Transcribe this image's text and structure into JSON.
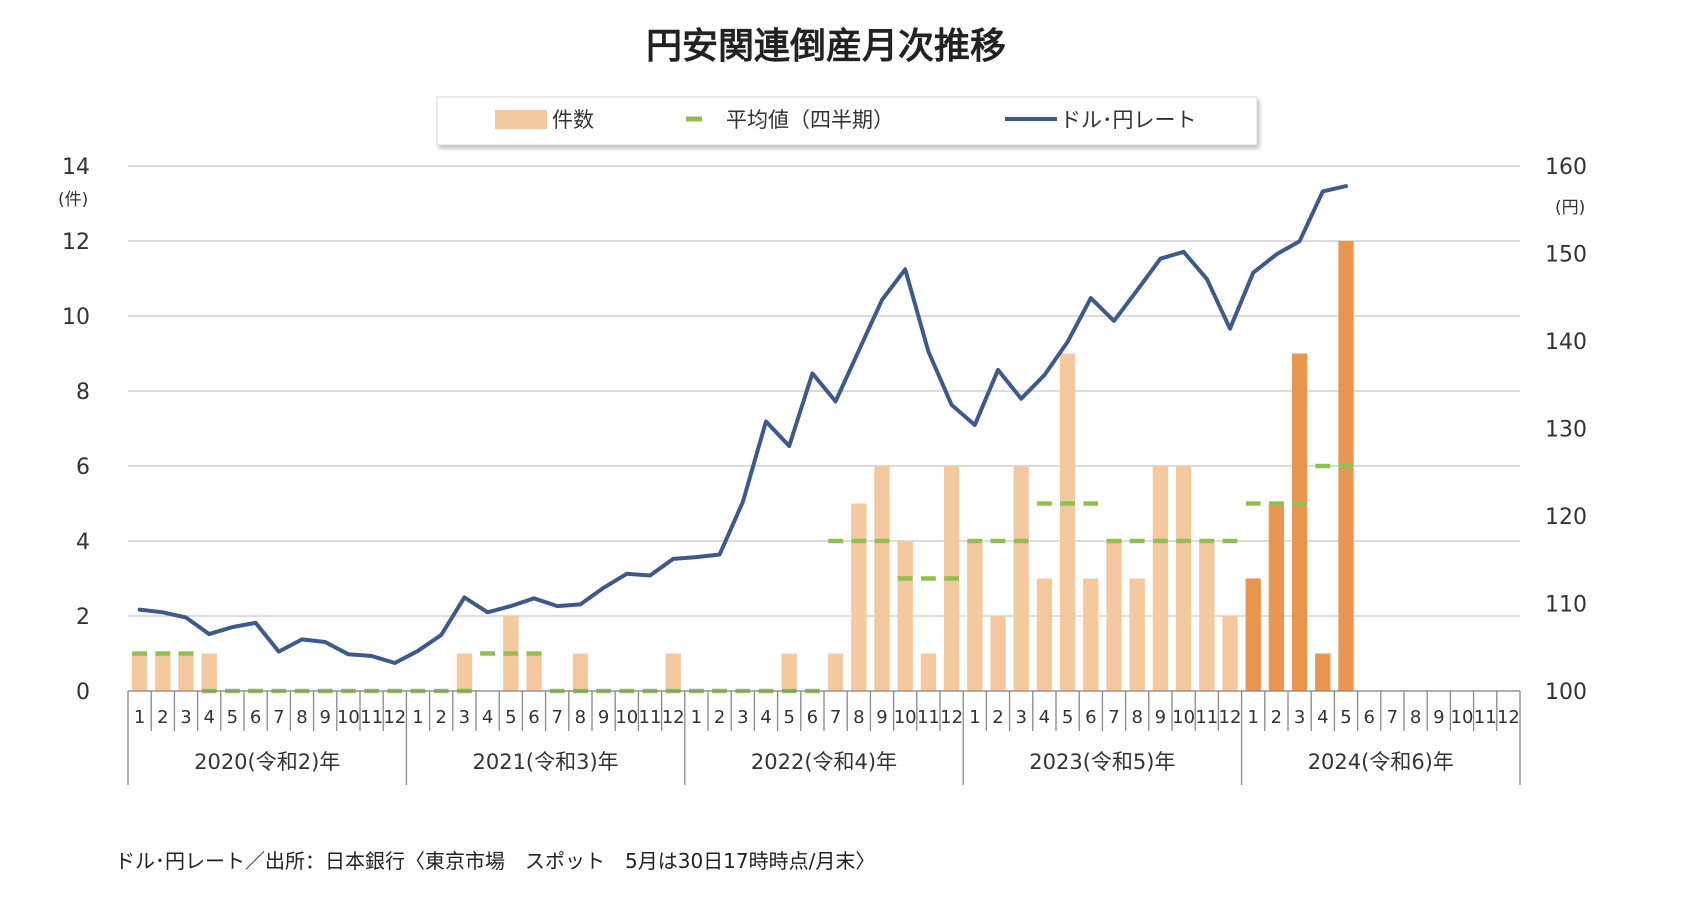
{
  "chart_data": {
    "type": "bar",
    "title": "円安関連倒産月次推移",
    "legend": {
      "placement": "top-center",
      "items": [
        {
          "key": "count",
          "label": "件数",
          "color": "#f5c9a0",
          "marker": "bar"
        },
        {
          "key": "avg",
          "label": "平均値（四半期）",
          "color": "#92c050",
          "marker": "dash"
        },
        {
          "key": "rate",
          "label": "ドル･円レート",
          "color": "#3d5a8a",
          "marker": "line"
        }
      ]
    },
    "left_axis": {
      "unit": "(件)",
      "min": 0,
      "max": 14,
      "ticks": [
        "0",
        "2",
        "4",
        "6",
        "8",
        "10",
        "12",
        "14"
      ]
    },
    "right_axis": {
      "unit": "(円)",
      "min": 100,
      "max": 160,
      "ticks": [
        "100",
        "110",
        "120",
        "130",
        "140",
        "150",
        "160"
      ]
    },
    "grid": true,
    "month_labels": [
      "1",
      "2",
      "3",
      "4",
      "5",
      "6",
      "7",
      "8",
      "9",
      "10",
      "11",
      "12"
    ],
    "years": [
      "2020(令和2)年",
      "2021(令和3)年",
      "2022(令和4)年",
      "2023(令和5)年",
      "2024(令和6)年"
    ],
    "series": [
      {
        "name": "件数",
        "axis": "left",
        "color_light": "#f5c9a0",
        "color_dark": "#e8954f",
        "dark_from_index": 48,
        "values": [
          1,
          1,
          1,
          1,
          0,
          0,
          0,
          0,
          0,
          0,
          0,
          0,
          0,
          0,
          1,
          0,
          2,
          1,
          0,
          1,
          0,
          0,
          0,
          1,
          0,
          0,
          0,
          0,
          1,
          0,
          1,
          5,
          6,
          4,
          1,
          6,
          4,
          2,
          6,
          3,
          9,
          3,
          4,
          3,
          6,
          6,
          4,
          2,
          3,
          5,
          9,
          1,
          12
        ]
      },
      {
        "name": "平均値（四半期）",
        "axis": "left",
        "color": "#92c050",
        "values": [
          1,
          1,
          1,
          0,
          0,
          0,
          0,
          0,
          0,
          0,
          0,
          0,
          0,
          0,
          0,
          1,
          1,
          1,
          0,
          0,
          0,
          0,
          0,
          0,
          0,
          0,
          0,
          0,
          0,
          0,
          4,
          4,
          4,
          3,
          3,
          3,
          4,
          4,
          4,
          5,
          5,
          5,
          4,
          4,
          4,
          4,
          4,
          4,
          5,
          5,
          5,
          6,
          6
        ]
      },
      {
        "name": "ドル･円レート",
        "axis": "right",
        "color": "#3d5a8a",
        "values": [
          109.3,
          109.0,
          108.4,
          106.5,
          107.3,
          107.8,
          104.5,
          105.9,
          105.6,
          104.2,
          104.0,
          103.2,
          104.6,
          106.4,
          110.7,
          109.0,
          109.7,
          110.6,
          109.7,
          109.9,
          111.8,
          113.4,
          113.2,
          115.1,
          115.3,
          115.6,
          121.6,
          130.8,
          128.0,
          136.3,
          133.1,
          138.9,
          144.7,
          148.2,
          138.8,
          132.7,
          130.4,
          136.7,
          133.4,
          136.1,
          139.9,
          144.9,
          142.3,
          145.8,
          149.4,
          150.2,
          147.1,
          141.4,
          147.8,
          149.9,
          151.4,
          157.1,
          157.7
        ]
      }
    ]
  },
  "footnote": "ドル･円レート／出所：日本銀行〈東京市場　スポット　5月は30日17時時点/月末〉"
}
